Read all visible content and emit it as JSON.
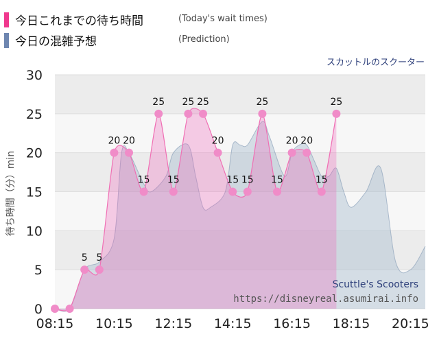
{
  "legend": [
    {
      "label": "今日これまでの待ち時間",
      "sub": "(Today's wait times)",
      "color": "#f0388e"
    },
    {
      "label": "今日の混雑予想",
      "sub": "(Prediction)",
      "color": "#6e86b0"
    }
  ],
  "subtitle": "スカットルのスクーター",
  "watermark": {
    "title": "Scuttle's Scooters",
    "url": "https://disneyreal.asumirai.info"
  },
  "chart_data": {
    "type": "area",
    "ylabel": "待ち時間（分）min",
    "xlabel": "",
    "ylim": [
      0,
      30
    ],
    "yticks": [
      0,
      5,
      10,
      15,
      20,
      25,
      30
    ],
    "xlim": [
      "08:15",
      "20:45"
    ],
    "xticks": [
      "08:15",
      "10:15",
      "12:15",
      "14:15",
      "16:15",
      "18:15",
      "20:15"
    ],
    "grid": true,
    "legend_position": "top-left",
    "series": [
      {
        "name": "今日の混雑予想",
        "color": "#6e86b0",
        "x": [
          "08:15",
          "08:45",
          "09:15",
          "09:45",
          "10:15",
          "10:30",
          "10:45",
          "11:15",
          "11:30",
          "12:00",
          "12:15",
          "12:45",
          "13:00",
          "13:15",
          "13:30",
          "14:00",
          "14:15",
          "14:30",
          "14:45",
          "15:15",
          "15:30",
          "16:00",
          "16:15",
          "16:30",
          "16:45",
          "17:00",
          "17:15",
          "17:30",
          "17:45",
          "18:00",
          "18:15",
          "18:45",
          "19:15",
          "19:45",
          "20:15",
          "20:45"
        ],
        "values": [
          0,
          0,
          5,
          6,
          9,
          20,
          20,
          16,
          15,
          17,
          20,
          21,
          17,
          13,
          13,
          15,
          21,
          21,
          21,
          24,
          22,
          17,
          20,
          21,
          21,
          19,
          17,
          17,
          18,
          15,
          13,
          15,
          18,
          6,
          5,
          8
        ]
      },
      {
        "name": "今日これまでの待ち時間",
        "color": "#f0388e",
        "x": [
          "08:15",
          "08:45",
          "09:15",
          "09:45",
          "10:15",
          "10:45",
          "11:15",
          "11:45",
          "12:15",
          "12:45",
          "13:15",
          "13:45",
          "14:15",
          "14:45",
          "15:15",
          "15:45",
          "16:15",
          "16:45",
          "17:15",
          "17:45"
        ],
        "values": [
          0,
          0,
          5,
          5,
          20,
          20,
          15,
          25,
          15,
          25,
          25,
          20,
          15,
          15,
          25,
          15,
          20,
          20,
          15,
          25
        ]
      }
    ]
  }
}
